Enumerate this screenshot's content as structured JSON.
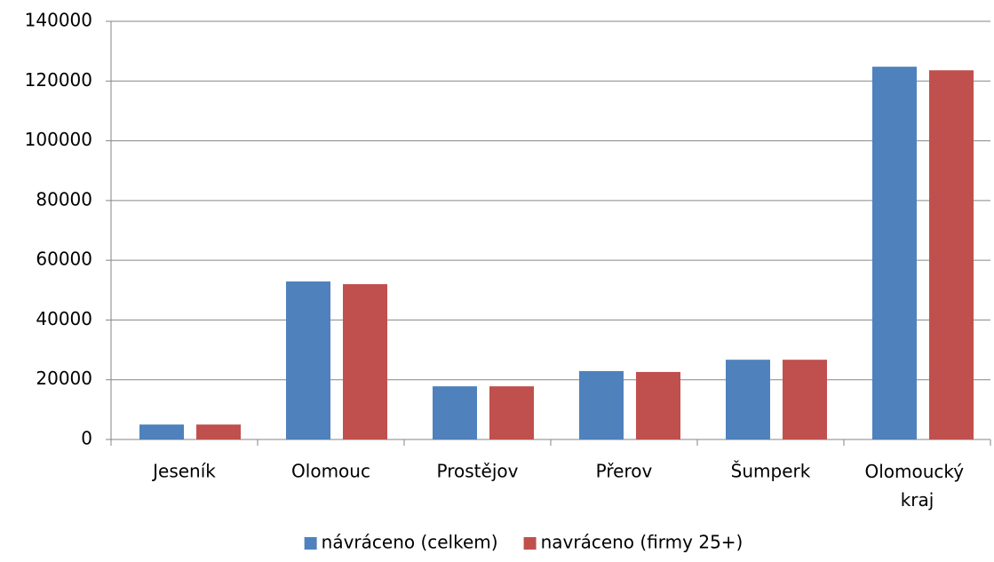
{
  "chart_data": {
    "type": "bar",
    "categories": [
      "Jeseník",
      "Olomouc",
      "Prostějov",
      "Přerov",
      "Šumperk",
      "Olomoucký kraj"
    ],
    "series": [
      {
        "name": "návráceno (celkem)",
        "color": "#4f81bd",
        "values": [
          5000,
          52900,
          17800,
          22900,
          26700,
          124800
        ]
      },
      {
        "name": "navráceno (firmy 25+)",
        "color": "#c0504d",
        "values": [
          5000,
          52000,
          17800,
          22600,
          26700,
          123600
        ]
      }
    ],
    "ylim": [
      0,
      140000
    ],
    "yticks": [
      0,
      20000,
      40000,
      60000,
      80000,
      100000,
      120000,
      140000
    ],
    "grid": true,
    "legend": "bottom"
  }
}
